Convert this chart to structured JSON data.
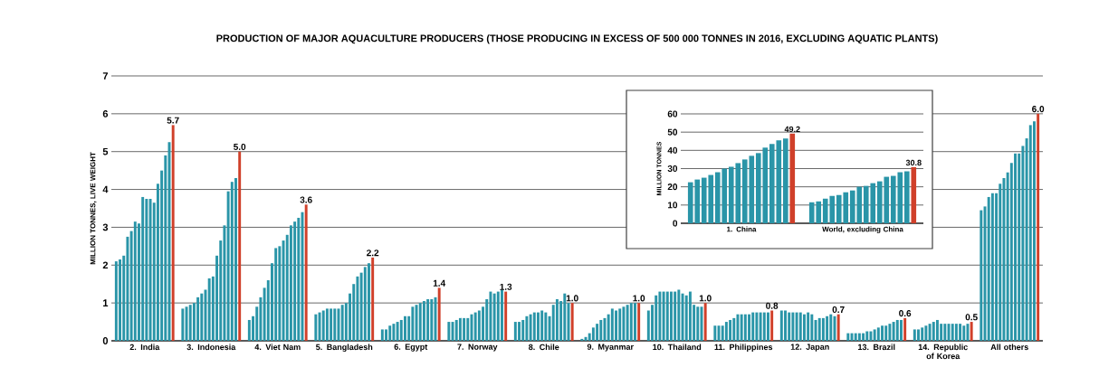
{
  "chart_data": [
    {
      "type": "bar",
      "title": "PRODUCTION OF MAJOR AQUACULTURE PRODUCERS (THOSE PRODUCING IN EXCESS OF 500 000 TONNES IN 2016, EXCLUDING AQUATIC PLANTS)",
      "ylabel": "MILLION TONNES, LIVE WEIGHT",
      "categories": [
        "2. India",
        "3. Indonesia",
        "4. Viet Nam",
        "5. Bangladesh",
        "6. Egypt",
        "7. Norway",
        "8. Chile",
        "9. Myanmar",
        "10. Thailand",
        "11. Philippines",
        "12. Japan",
        "13. Brazil",
        "14. Republic of Korea",
        "All others"
      ],
      "ylim": [
        0,
        7
      ],
      "yticks": [
        0,
        1,
        2,
        3,
        4,
        5,
        6,
        7
      ],
      "grid": "y",
      "series": [
        {
          "color": "#2a95a8",
          "values": [
            2.1,
            0.85,
            0.55,
            0.7,
            0.3,
            0.5,
            0.5,
            0.05,
            0.8,
            0.4,
            0.8,
            0.2,
            0.3,
            3.45
          ]
        },
        {
          "color": "#2a95a8",
          "values": [
            2.15,
            0.9,
            0.65,
            0.75,
            0.3,
            0.5,
            0.5,
            0.1,
            0.95,
            0.4,
            0.8,
            0.2,
            0.3,
            3.55
          ]
        },
        {
          "color": "#2a95a8",
          "values": [
            2.25,
            0.95,
            0.9,
            0.8,
            0.4,
            0.55,
            0.55,
            0.2,
            1.2,
            0.4,
            0.75,
            0.2,
            0.35,
            3.8
          ]
        },
        {
          "color": "#2a95a8",
          "values": [
            2.75,
            1.0,
            1.15,
            0.85,
            0.45,
            0.6,
            0.65,
            0.35,
            1.3,
            0.5,
            0.75,
            0.2,
            0.4,
            3.9
          ]
        },
        {
          "color": "#2a95a8",
          "values": [
            2.9,
            1.15,
            1.4,
            0.85,
            0.5,
            0.6,
            0.7,
            0.45,
            1.3,
            0.55,
            0.75,
            0.2,
            0.45,
            3.9
          ]
        },
        {
          "color": "#2a95a8",
          "values": [
            3.15,
            1.25,
            1.6,
            0.85,
            0.55,
            0.6,
            0.75,
            0.55,
            1.3,
            0.6,
            0.75,
            0.25,
            0.5,
            4.15
          ]
        },
        {
          "color": "#2a95a8",
          "values": [
            3.1,
            1.35,
            2.05,
            0.85,
            0.65,
            0.7,
            0.75,
            0.6,
            1.3,
            0.7,
            0.7,
            0.25,
            0.55,
            4.3
          ]
        },
        {
          "color": "#2a95a8",
          "values": [
            3.8,
            1.65,
            2.45,
            0.95,
            0.65,
            0.75,
            0.8,
            0.7,
            1.3,
            0.7,
            0.75,
            0.3,
            0.45,
            4.45
          ]
        },
        {
          "color": "#2a95a8",
          "values": [
            3.75,
            1.7,
            2.5,
            1.0,
            0.9,
            0.8,
            0.75,
            0.85,
            1.35,
            0.7,
            0.7,
            0.35,
            0.45,
            4.7
          ]
        },
        {
          "color": "#2a95a8",
          "values": [
            3.75,
            2.25,
            2.65,
            1.25,
            0.95,
            0.9,
            0.65,
            0.8,
            1.25,
            0.7,
            0.55,
            0.4,
            0.45,
            4.95
          ]
        },
        {
          "color": "#2a95a8",
          "values": [
            3.65,
            2.65,
            2.8,
            1.5,
            1.0,
            1.1,
            0.95,
            0.85,
            1.2,
            0.75,
            0.6,
            0.4,
            0.45,
            4.95
          ]
        },
        {
          "color": "#2a95a8",
          "values": [
            4.15,
            3.05,
            3.05,
            1.7,
            1.05,
            1.3,
            1.1,
            0.9,
            1.3,
            0.75,
            0.6,
            0.45,
            0.45,
            5.15
          ]
        },
        {
          "color": "#2a95a8",
          "values": [
            4.5,
            3.95,
            3.15,
            1.8,
            1.1,
            1.25,
            1.05,
            0.95,
            0.95,
            0.75,
            0.65,
            0.5,
            0.45,
            5.35
          ]
        },
        {
          "color": "#2a95a8",
          "values": [
            4.9,
            4.2,
            3.25,
            1.95,
            1.1,
            1.3,
            1.25,
            1.0,
            0.9,
            0.75,
            0.7,
            0.55,
            0.4,
            5.7
          ]
        },
        {
          "color": "#2a95a8",
          "values": [
            5.25,
            4.3,
            3.4,
            2.05,
            1.15,
            1.35,
            1.0,
            1.0,
            0.9,
            0.75,
            0.65,
            0.55,
            0.45,
            5.8
          ]
        },
        {
          "color": "#d0402a",
          "values": [
            5.7,
            5.0,
            3.6,
            2.2,
            1.4,
            1.3,
            1.0,
            1.0,
            1.0,
            0.8,
            0.7,
            0.6,
            0.5,
            6.0
          ],
          "value_labels": [
            "5.7",
            "5.0",
            "3.6",
            "2.2",
            "1.4",
            "1.3",
            "1.0",
            "1.0",
            "1.0",
            "0.8",
            "0.7",
            "0.6",
            "0.5",
            "6.0"
          ]
        }
      ]
    },
    {
      "type": "bar",
      "ylabel": "MILLION TONNES",
      "categories": [
        "1. China",
        "World, excluding China"
      ],
      "ylim": [
        0,
        60
      ],
      "yticks": [
        0,
        10,
        20,
        30,
        40,
        50,
        60
      ],
      "grid": "y",
      "series": [
        {
          "color": "#2a95a8",
          "values": [
            22.5,
            11.5
          ]
        },
        {
          "color": "#2a95a8",
          "values": [
            24,
            12
          ]
        },
        {
          "color": "#2a95a8",
          "values": [
            25,
            13.5
          ]
        },
        {
          "color": "#2a95a8",
          "values": [
            26.5,
            15
          ]
        },
        {
          "color": "#2a95a8",
          "values": [
            28,
            15.5
          ]
        },
        {
          "color": "#2a95a8",
          "values": [
            30,
            17
          ]
        },
        {
          "color": "#2a95a8",
          "values": [
            31,
            18
          ]
        },
        {
          "color": "#2a95a8",
          "values": [
            33,
            20
          ]
        },
        {
          "color": "#2a95a8",
          "values": [
            35,
            20.5
          ]
        },
        {
          "color": "#2a95a8",
          "values": [
            37,
            22
          ]
        },
        {
          "color": "#2a95a8",
          "values": [
            38.5,
            23
          ]
        },
        {
          "color": "#2a95a8",
          "values": [
            41.5,
            25.5
          ]
        },
        {
          "color": "#2a95a8",
          "values": [
            43.5,
            26
          ]
        },
        {
          "color": "#2a95a8",
          "values": [
            45.5,
            28
          ]
        },
        {
          "color": "#2a95a8",
          "values": [
            46.5,
            28.5
          ]
        },
        {
          "color": "#d0402a",
          "values": [
            49.2,
            30.8
          ],
          "value_labels": [
            "49.2",
            "30.8"
          ]
        }
      ]
    }
  ]
}
